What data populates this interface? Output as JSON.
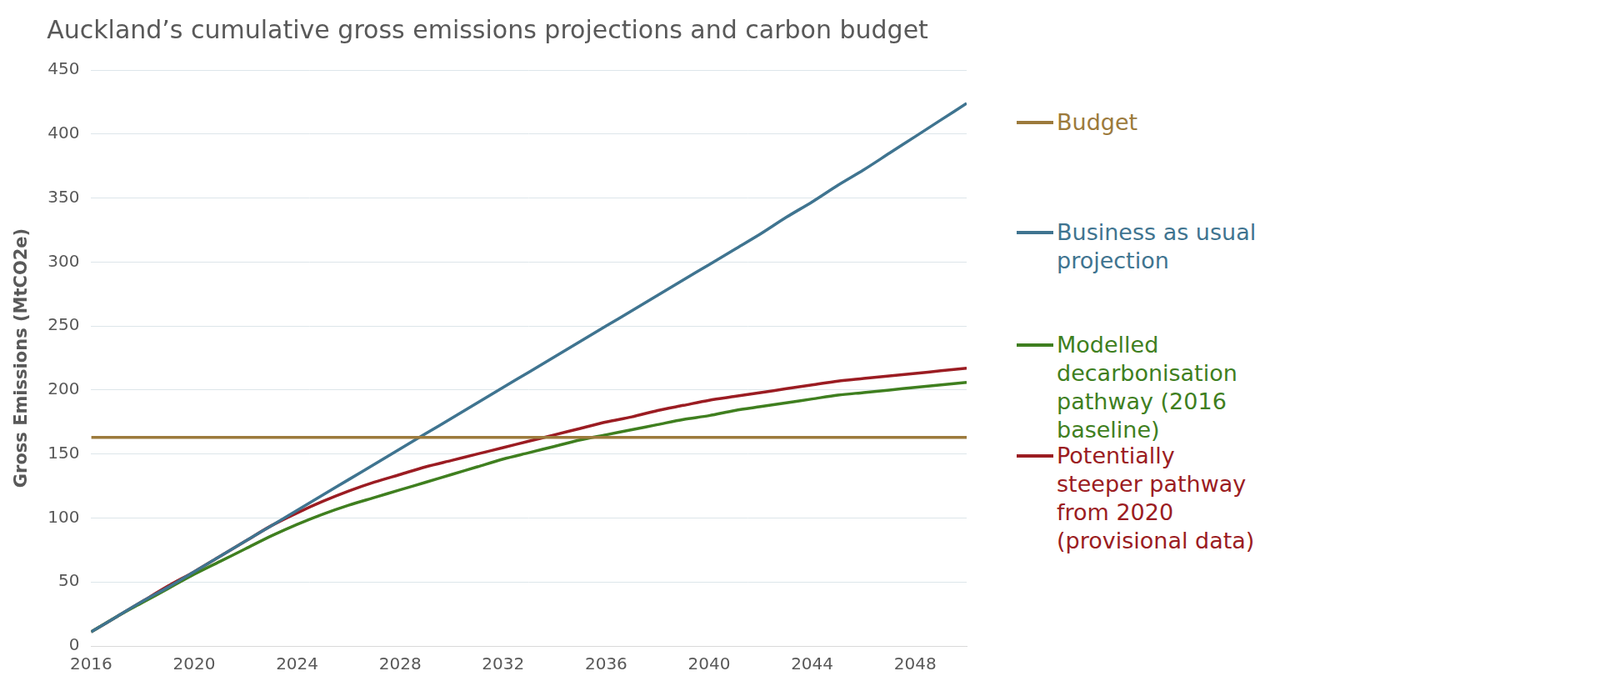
{
  "chart_data": {
    "type": "line",
    "title": "Auckland’s cumulative gross emissions projections and carbon budget",
    "y_label": "Gross Emissions (MtCO2e)",
    "x": [
      2016,
      2017,
      2018,
      2019,
      2020,
      2021,
      2022,
      2023,
      2024,
      2025,
      2026,
      2027,
      2028,
      2029,
      2030,
      2031,
      2032,
      2033,
      2034,
      2035,
      2036,
      2037,
      2038,
      2039,
      2040,
      2041,
      2042,
      2043,
      2044,
      2045,
      2046,
      2047,
      2048,
      2049,
      2050
    ],
    "xlim": [
      2016,
      2050
    ],
    "xticks": [
      2016,
      2020,
      2024,
      2028,
      2032,
      2036,
      2040,
      2044,
      2048
    ],
    "ylim": [
      0,
      450
    ],
    "yticks": [
      0,
      50,
      100,
      150,
      200,
      250,
      300,
      350,
      400,
      450
    ],
    "grid": true,
    "legend": "right",
    "series": [
      {
        "name": "Budget",
        "color": "#9c7a3c",
        "values": [
          163,
          163,
          163,
          163,
          163,
          163,
          163,
          163,
          163,
          163,
          163,
          163,
          163,
          163,
          163,
          163,
          163,
          163,
          163,
          163,
          163,
          163,
          163,
          163,
          163,
          163,
          163,
          163,
          163,
          163,
          163,
          163,
          163,
          163,
          163
        ]
      },
      {
        "name": "Business as usual projection",
        "color": "#3f7490",
        "values": [
          11,
          23,
          35,
          46,
          58,
          70,
          82,
          94,
          106,
          118,
          130,
          142,
          154,
          166,
          178,
          190,
          202,
          214,
          226,
          238,
          250,
          262,
          274,
          286,
          298,
          310,
          322,
          335,
          347,
          360,
          372,
          385,
          398,
          411,
          424
        ]
      },
      {
        "name": "Modelled decarbonisation pathway (2016 baseline)",
        "color": "#3f7f1f",
        "values": [
          11,
          23,
          34,
          45,
          56,
          66,
          76,
          86,
          95,
          103,
          110,
          116,
          122,
          128,
          134,
          140,
          146,
          151,
          156,
          161,
          165,
          169,
          173,
          177,
          180,
          184,
          187,
          190,
          193,
          196,
          198,
          200,
          202,
          204,
          206
        ]
      },
      {
        "name": "Potentially steeper pathway from 2020 (provisional data)",
        "color": "#9b1c22",
        "values": [
          11,
          23,
          35,
          47,
          58,
          70,
          82,
          94,
          104,
          113,
          121,
          128,
          134,
          140,
          145,
          150,
          155,
          160,
          165,
          170,
          175,
          179,
          184,
          188,
          192,
          195,
          198,
          201,
          204,
          207,
          209,
          211,
          213,
          215,
          217
        ]
      }
    ]
  }
}
